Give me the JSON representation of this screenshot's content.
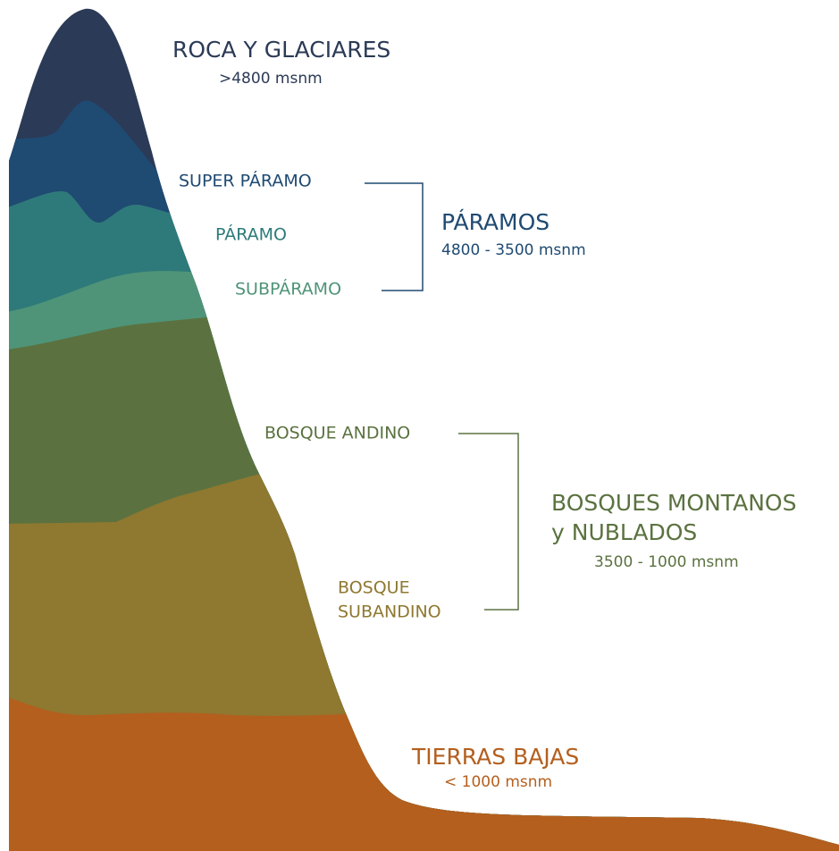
{
  "roca": {
    "title": "ROCA Y GLACIARES",
    "elevation": ">4800 msnm"
  },
  "paramos": {
    "title": "PÁRAMOS",
    "elevation": "4800 - 3500 msnm",
    "subzones": [
      "SUPER PÁRAMO",
      "PÁRAMO",
      "SUBPÁRAMO"
    ]
  },
  "bosques": {
    "title_lines": [
      "BOSQUES MONTANOS",
      "y NUBLADOS"
    ],
    "elevation": "3500 - 1000 msnm",
    "subzones": [
      [
        "BOSQUE ANDINO"
      ],
      [
        "BOSQUE",
        "SUBANDINO"
      ]
    ]
  },
  "tierras_bajas": {
    "title": "TIERRAS BAJAS",
    "elevation": "< 1000 msnm"
  }
}
